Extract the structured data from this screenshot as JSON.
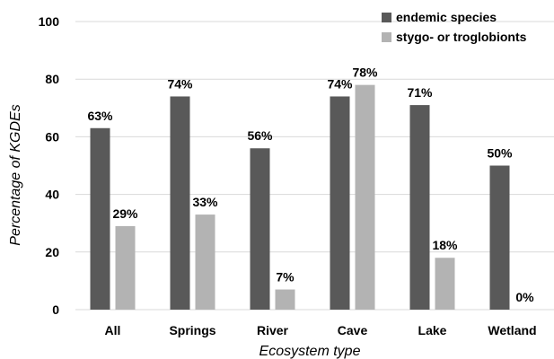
{
  "chart_data": {
    "type": "bar",
    "categories": [
      "All",
      "Springs",
      "River",
      "Cave",
      "Lake",
      "Wetland"
    ],
    "series": [
      {
        "name": "endemic species",
        "values": [
          63,
          74,
          56,
          74,
          71,
          50
        ],
        "labels": [
          "63%",
          "74%",
          "56%",
          "74%",
          "71%",
          "50%"
        ],
        "color": "#595959"
      },
      {
        "name": "stygo- or troglobionts",
        "values": [
          29,
          33,
          7,
          78,
          18,
          0
        ],
        "labels": [
          "29%",
          "33%",
          "7%",
          "78%",
          "18%",
          "0%"
        ],
        "color": "#b3b3b3"
      }
    ],
    "xlabel": "Ecosystem type",
    "ylabel": "Percentage of KGDEs",
    "ylim": [
      0,
      100
    ],
    "yticks": [
      0,
      20,
      40,
      60,
      80,
      100
    ],
    "grid": true,
    "legend": "top-right"
  }
}
